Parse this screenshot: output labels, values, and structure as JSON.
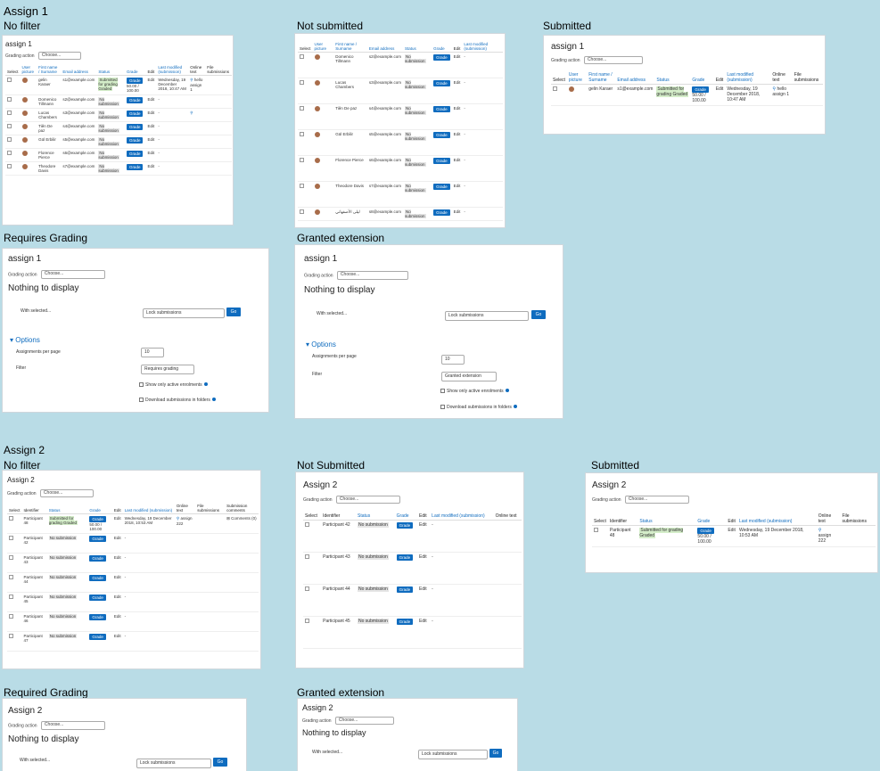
{
  "labels": {
    "assign1": "Assign 1",
    "no_filter": "No filter",
    "not_submitted": "Not submitted",
    "submitted": "Submitted",
    "requires_grading": "Requires Grading",
    "granted_extension": "Granted extension",
    "assign2": "Assign 2",
    "no_filter_2": "No filter",
    "not_submitted_2": "Not Submitted",
    "submitted_2": "Submitted",
    "required_grading_2": "Required Grading",
    "granted_extension_2": "Granted extension"
  },
  "common": {
    "grading_action": "Grading action",
    "choose": "Choose...",
    "nothing_to_display": "Nothing to display",
    "with_selected": "With selected...",
    "lock_submissions": "Lock submissions",
    "go": "Go",
    "options": "Options",
    "assignments_per_page": "Assignments per page",
    "per_page_value": "10",
    "filter": "Filter",
    "show_active": "Show only active enrolments",
    "download_folders": "Download submissions in folders",
    "grade_btn": "Grade",
    "edit": "Edit",
    "no_submission": "No submission",
    "dash": "-"
  },
  "assign1": {
    "title": "assign 1",
    "headers": {
      "select": "Select",
      "user_picture": "User picture",
      "name": "First name / Surname",
      "email": "Email address",
      "status": "Status",
      "grade": "Grade",
      "edit": "Edit",
      "last_modified": "Last modified (submission)",
      "online_text": "Online text",
      "file_submissions": "File submissions"
    },
    "rows": [
      {
        "name": "gelin Karaer",
        "email": "s1@example.com",
        "status": "Submitted for grading Graded",
        "grade": "50.00 / 100.00",
        "modified": "Wednesday, 19 December 2018, 10:47 AM",
        "online": "hello assign 1"
      },
      {
        "name": "Domenico Tillmann",
        "email": "s2@example.com",
        "status": "No submission"
      },
      {
        "name": "Lucas Chambers",
        "email": "s3@example.com",
        "status": "No submission"
      },
      {
        "name": "Tiên De paz",
        "email": "s4@example.com",
        "status": "No submission"
      },
      {
        "name": "Gül Erbilir",
        "email": "s5@example.com",
        "status": "No submission"
      },
      {
        "name": "Florence Pierce",
        "email": "s6@example.com",
        "status": "No submission"
      },
      {
        "name": "Theodore Davis",
        "email": "s7@example.com",
        "status": "No submission"
      },
      {
        "name": "ليلى الأصفهاني",
        "email": "s8@example.com",
        "status": "No submission"
      }
    ],
    "filter_requires": "Requires grading",
    "filter_extension": "Granted extension"
  },
  "assign2": {
    "title": "Assign 2",
    "headers": {
      "select": "Select",
      "identifier": "Identifier",
      "status": "Status",
      "grade": "Grade",
      "edit": "Edit",
      "last_modified": "Last modified (submission)",
      "online_text": "Online text",
      "file_submissions": "File submissions",
      "submission_comments": "Submission comments"
    },
    "rows": [
      {
        "id": "Participant 48",
        "status": "Submitted for grading Graded",
        "grade": "50.00 / 100.00",
        "modified": "Wednesday, 19 December 2018, 10:53 AM",
        "online": "assign 222",
        "comments": "Comments (0)"
      },
      {
        "id": "Participant 42",
        "status": "No submission"
      },
      {
        "id": "Participant 43",
        "status": "No submission"
      },
      {
        "id": "Participant 44",
        "status": "No submission"
      },
      {
        "id": "Participant 45",
        "status": "No submission"
      },
      {
        "id": "Participant 46",
        "status": "No submission"
      },
      {
        "id": "Participant 47",
        "status": "No submission"
      }
    ]
  }
}
